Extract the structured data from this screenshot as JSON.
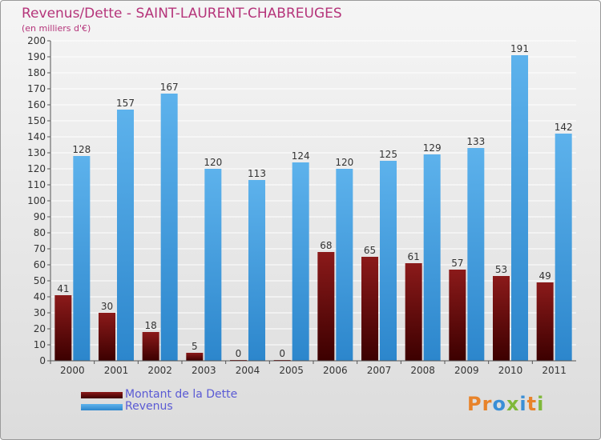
{
  "header": {
    "title": "Revenus/Dette - SAINT-LAURENT-CHABREUGES",
    "subtitle": "(en milliers d'€)"
  },
  "logo": {
    "letters": [
      "P",
      "r",
      "o",
      "x",
      "i",
      "t",
      "i"
    ],
    "text": "Proxiti"
  },
  "colors": {
    "dette_top": "#8b1a1a",
    "dette_bottom": "#3c0000",
    "revenus_top": "#5db2ec",
    "revenus_bottom": "#2c86cc",
    "title": "#b5347a",
    "legend_text": "#5a5ad4"
  },
  "chart_data": {
    "type": "bar",
    "title": "Revenus/Dette - SAINT-LAURENT-CHABREUGES",
    "ylabel": "(en milliers d'€)",
    "xlabel": "",
    "ylim": [
      0,
      200
    ],
    "yticks": [
      0,
      10,
      20,
      30,
      40,
      50,
      60,
      70,
      80,
      90,
      100,
      110,
      120,
      130,
      140,
      150,
      160,
      170,
      180,
      190,
      200
    ],
    "grid": true,
    "legend_position": "bottom-left",
    "categories": [
      "2000",
      "2001",
      "2002",
      "2003",
      "2004",
      "2005",
      "2006",
      "2007",
      "2008",
      "2009",
      "2010",
      "2011"
    ],
    "series": [
      {
        "name": "Montant de la Dette",
        "values": [
          41,
          30,
          18,
          5,
          0,
          0,
          68,
          65,
          61,
          57,
          53,
          49
        ]
      },
      {
        "name": "Revenus",
        "values": [
          128,
          157,
          167,
          120,
          113,
          124,
          120,
          125,
          129,
          133,
          191,
          142
        ]
      }
    ]
  }
}
